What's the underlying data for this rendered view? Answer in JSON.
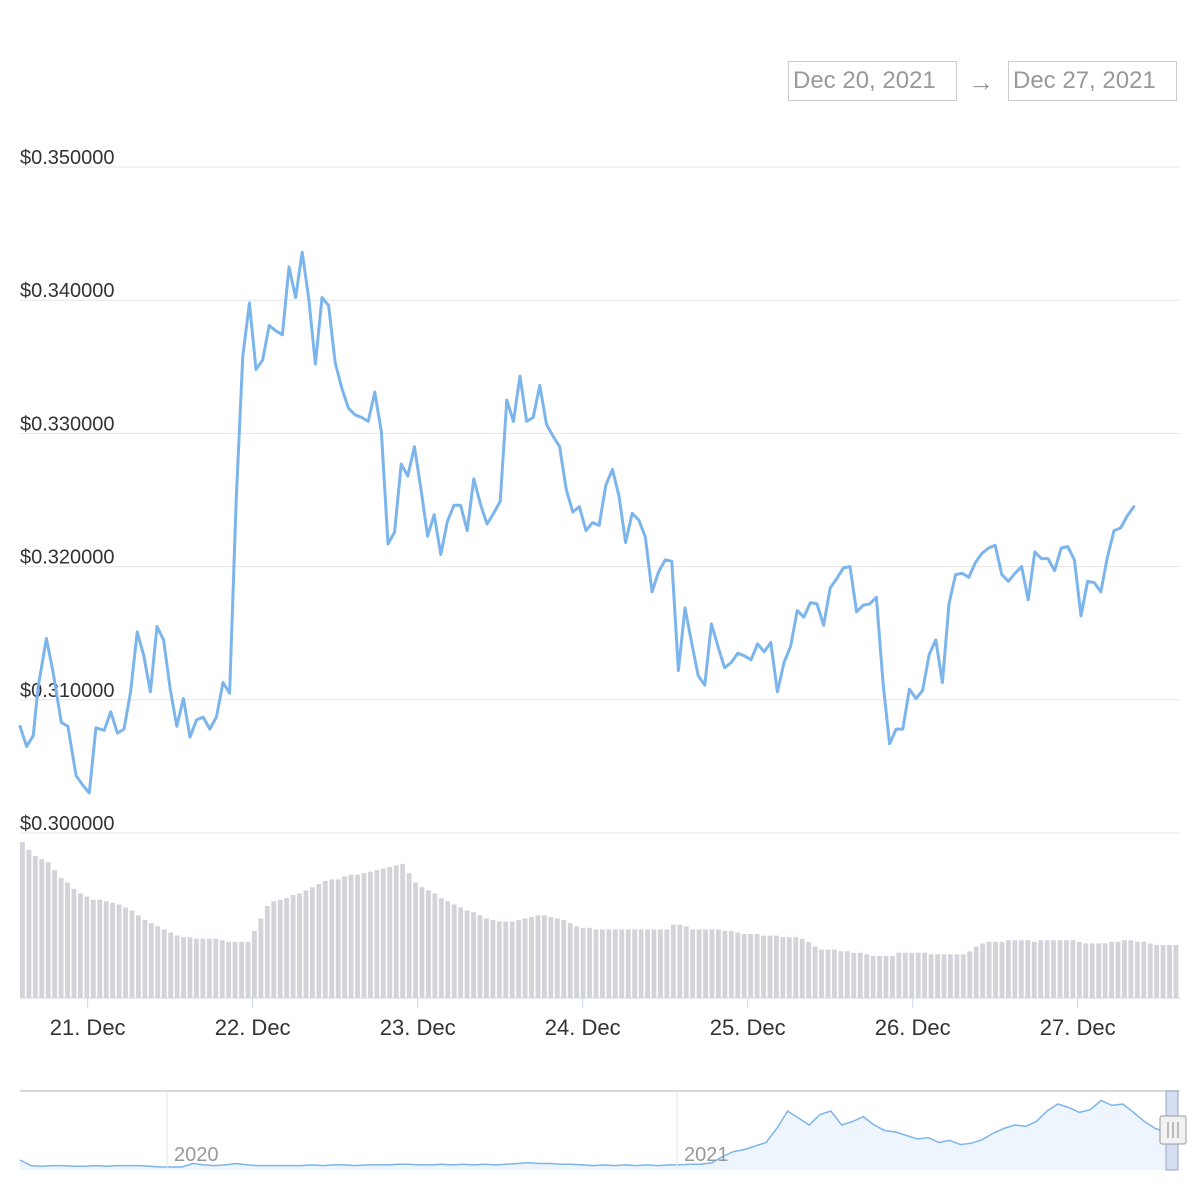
{
  "range_selector": {
    "from": "Dec 20, 2021",
    "arrow": "→",
    "to": "Dec 27, 2021"
  },
  "chart_data": {
    "type": "line",
    "title": "",
    "xlabel": "",
    "ylabel": "",
    "ylim": [
      0.3,
      0.35
    ],
    "y_tick_labels": [
      "$0.300000",
      "$0.310000",
      "$0.320000",
      "$0.330000",
      "$0.340000",
      "$0.350000"
    ],
    "y_tick_values": [
      0.3,
      0.31,
      0.32,
      0.33,
      0.34,
      0.35
    ],
    "x_tick_labels": [
      "21. Dec",
      "22. Dec",
      "23. Dec",
      "24. Dec",
      "25. Dec",
      "26. Dec",
      "27. Dec"
    ],
    "x_tick_values": [
      1,
      2,
      3,
      4,
      5,
      6,
      7
    ],
    "x_unit": "days since Dec 20, 2021 00:00",
    "xlim": [
      0.59,
      7.62
    ],
    "grid": true,
    "line_color": "#7cb5ec",
    "volume_color": "#d3d4da",
    "series": [
      {
        "name": "",
        "points": [
          [
            0.59,
            0.308
          ],
          [
            0.63,
            0.3065
          ],
          [
            0.67,
            0.3073
          ],
          [
            0.7,
            0.311
          ],
          [
            0.75,
            0.3146
          ],
          [
            0.79,
            0.3121
          ],
          [
            0.84,
            0.3083
          ],
          [
            0.88,
            0.308
          ],
          [
            0.93,
            0.3043
          ],
          [
            0.97,
            0.3036
          ],
          [
            1.01,
            0.303
          ],
          [
            1.05,
            0.3079
          ],
          [
            1.1,
            0.3077
          ],
          [
            1.14,
            0.3091
          ],
          [
            1.18,
            0.3075
          ],
          [
            1.22,
            0.3078
          ],
          [
            1.26,
            0.3106
          ],
          [
            1.3,
            0.3151
          ],
          [
            1.34,
            0.3133
          ],
          [
            1.38,
            0.3106
          ],
          [
            1.42,
            0.3155
          ],
          [
            1.46,
            0.3145
          ],
          [
            1.5,
            0.3108
          ],
          [
            1.54,
            0.308
          ],
          [
            1.58,
            0.3101
          ],
          [
            1.62,
            0.3072
          ],
          [
            1.66,
            0.3085
          ],
          [
            1.7,
            0.3087
          ],
          [
            1.74,
            0.3078
          ],
          [
            1.78,
            0.3087
          ],
          [
            1.82,
            0.3113
          ],
          [
            1.86,
            0.3105
          ],
          [
            1.9,
            0.325
          ],
          [
            1.94,
            0.3358
          ],
          [
            1.98,
            0.3398
          ],
          [
            2.02,
            0.3348
          ],
          [
            2.06,
            0.3355
          ],
          [
            2.1,
            0.3381
          ],
          [
            2.14,
            0.3377
          ],
          [
            2.18,
            0.3374
          ],
          [
            2.22,
            0.3425
          ],
          [
            2.26,
            0.3402
          ],
          [
            2.3,
            0.3436
          ],
          [
            2.34,
            0.3401
          ],
          [
            2.38,
            0.3352
          ],
          [
            2.42,
            0.3402
          ],
          [
            2.46,
            0.3396
          ],
          [
            2.5,
            0.3353
          ],
          [
            2.54,
            0.3334
          ],
          [
            2.58,
            0.3319
          ],
          [
            2.62,
            0.3314
          ],
          [
            2.66,
            0.3312
          ],
          [
            2.7,
            0.3309
          ],
          [
            2.74,
            0.3331
          ],
          [
            2.78,
            0.3301
          ],
          [
            2.82,
            0.3217
          ],
          [
            2.86,
            0.3226
          ],
          [
            2.9,
            0.3277
          ],
          [
            2.94,
            0.3268
          ],
          [
            2.98,
            0.329
          ],
          [
            3.02,
            0.3258
          ],
          [
            3.06,
            0.3223
          ],
          [
            3.1,
            0.3239
          ],
          [
            3.14,
            0.3209
          ],
          [
            3.18,
            0.3234
          ],
          [
            3.22,
            0.3246
          ],
          [
            3.26,
            0.3246
          ],
          [
            3.3,
            0.3227
          ],
          [
            3.34,
            0.3266
          ],
          [
            3.38,
            0.3247
          ],
          [
            3.42,
            0.3232
          ],
          [
            3.46,
            0.324
          ],
          [
            3.5,
            0.3249
          ],
          [
            3.54,
            0.3325
          ],
          [
            3.58,
            0.3309
          ],
          [
            3.62,
            0.3343
          ],
          [
            3.66,
            0.3309
          ],
          [
            3.7,
            0.3312
          ],
          [
            3.74,
            0.3336
          ],
          [
            3.78,
            0.3307
          ],
          [
            3.82,
            0.3298
          ],
          [
            3.86,
            0.329
          ],
          [
            3.9,
            0.3258
          ],
          [
            3.94,
            0.3241
          ],
          [
            3.98,
            0.3245
          ],
          [
            4.02,
            0.3227
          ],
          [
            4.06,
            0.3233
          ],
          [
            4.1,
            0.3231
          ],
          [
            4.14,
            0.3261
          ],
          [
            4.18,
            0.3273
          ],
          [
            4.22,
            0.3253
          ],
          [
            4.26,
            0.3218
          ],
          [
            4.3,
            0.324
          ],
          [
            4.34,
            0.3235
          ],
          [
            4.38,
            0.3222
          ],
          [
            4.42,
            0.3181
          ],
          [
            4.46,
            0.3196
          ],
          [
            4.5,
            0.3205
          ],
          [
            4.54,
            0.3204
          ],
          [
            4.58,
            0.3122
          ],
          [
            4.62,
            0.3169
          ],
          [
            4.66,
            0.3143
          ],
          [
            4.7,
            0.3118
          ],
          [
            4.74,
            0.3111
          ],
          [
            4.78,
            0.3157
          ],
          [
            4.82,
            0.314
          ],
          [
            4.86,
            0.3124
          ],
          [
            4.9,
            0.3128
          ],
          [
            4.94,
            0.3135
          ],
          [
            4.98,
            0.3133
          ],
          [
            5.02,
            0.313
          ],
          [
            5.06,
            0.3142
          ],
          [
            5.1,
            0.3136
          ],
          [
            5.14,
            0.3143
          ],
          [
            5.18,
            0.3106
          ],
          [
            5.22,
            0.3128
          ],
          [
            5.26,
            0.314
          ],
          [
            5.3,
            0.3167
          ],
          [
            5.34,
            0.3162
          ],
          [
            5.38,
            0.3173
          ],
          [
            5.42,
            0.3172
          ],
          [
            5.46,
            0.3156
          ],
          [
            5.5,
            0.3184
          ],
          [
            5.54,
            0.3191
          ],
          [
            5.58,
            0.3199
          ],
          [
            5.62,
            0.32
          ],
          [
            5.66,
            0.3166
          ],
          [
            5.7,
            0.3171
          ],
          [
            5.74,
            0.3172
          ],
          [
            5.78,
            0.3177
          ],
          [
            5.82,
            0.3113
          ],
          [
            5.86,
            0.3067
          ],
          [
            5.9,
            0.3078
          ],
          [
            5.94,
            0.3078
          ],
          [
            5.98,
            0.3108
          ],
          [
            6.02,
            0.3101
          ],
          [
            6.06,
            0.3107
          ],
          [
            6.1,
            0.3134
          ],
          [
            6.14,
            0.3145
          ],
          [
            6.18,
            0.3113
          ],
          [
            6.22,
            0.3172
          ],
          [
            6.26,
            0.3194
          ],
          [
            6.3,
            0.3195
          ],
          [
            6.34,
            0.3192
          ],
          [
            6.38,
            0.3203
          ],
          [
            6.42,
            0.321
          ],
          [
            6.46,
            0.3214
          ],
          [
            6.5,
            0.3216
          ],
          [
            6.54,
            0.3194
          ],
          [
            6.58,
            0.3189
          ],
          [
            6.62,
            0.3195
          ],
          [
            6.66,
            0.32
          ],
          [
            6.7,
            0.3175
          ],
          [
            6.74,
            0.3211
          ],
          [
            6.78,
            0.3206
          ],
          [
            6.82,
            0.3206
          ],
          [
            6.86,
            0.3197
          ],
          [
            6.9,
            0.3214
          ],
          [
            6.94,
            0.3215
          ],
          [
            6.98,
            0.3205
          ],
          [
            7.02,
            0.3163
          ],
          [
            7.06,
            0.3189
          ],
          [
            7.1,
            0.3188
          ],
          [
            7.14,
            0.3181
          ],
          [
            7.18,
            0.3207
          ],
          [
            7.22,
            0.3227
          ],
          [
            7.26,
            0.3229
          ],
          [
            7.3,
            0.3238
          ],
          [
            7.34,
            0.3245
          ]
        ]
      }
    ],
    "volume": {
      "max_label": "",
      "relative": [
        1.0,
        0.95,
        0.91,
        0.89,
        0.87,
        0.82,
        0.77,
        0.74,
        0.7,
        0.67,
        0.65,
        0.63,
        0.63,
        0.62,
        0.61,
        0.6,
        0.58,
        0.56,
        0.53,
        0.5,
        0.48,
        0.46,
        0.44,
        0.42,
        0.4,
        0.39,
        0.39,
        0.38,
        0.38,
        0.38,
        0.38,
        0.37,
        0.36,
        0.36,
        0.36,
        0.36,
        0.43,
        0.51,
        0.59,
        0.62,
        0.63,
        0.64,
        0.66,
        0.67,
        0.69,
        0.71,
        0.73,
        0.75,
        0.76,
        0.76,
        0.78,
        0.79,
        0.79,
        0.8,
        0.81,
        0.82,
        0.83,
        0.84,
        0.85,
        0.86,
        0.8,
        0.74,
        0.71,
        0.69,
        0.67,
        0.64,
        0.62,
        0.6,
        0.58,
        0.56,
        0.55,
        0.53,
        0.51,
        0.5,
        0.49,
        0.49,
        0.49,
        0.5,
        0.51,
        0.52,
        0.53,
        0.53,
        0.52,
        0.51,
        0.5,
        0.48,
        0.46,
        0.45,
        0.45,
        0.44,
        0.44,
        0.44,
        0.44,
        0.44,
        0.44,
        0.44,
        0.44,
        0.44,
        0.44,
        0.44,
        0.44,
        0.47,
        0.47,
        0.46,
        0.44,
        0.44,
        0.44,
        0.44,
        0.44,
        0.43,
        0.43,
        0.42,
        0.41,
        0.41,
        0.41,
        0.4,
        0.4,
        0.4,
        0.39,
        0.39,
        0.39,
        0.38,
        0.36,
        0.33,
        0.31,
        0.31,
        0.31,
        0.3,
        0.3,
        0.29,
        0.29,
        0.28,
        0.27,
        0.27,
        0.27,
        0.27,
        0.29,
        0.29,
        0.29,
        0.29,
        0.29,
        0.28,
        0.28,
        0.28,
        0.28,
        0.28,
        0.28,
        0.3,
        0.33,
        0.35,
        0.36,
        0.36,
        0.36,
        0.37,
        0.37,
        0.37,
        0.37,
        0.36,
        0.37,
        0.37,
        0.37,
        0.37,
        0.37,
        0.37,
        0.36,
        0.35,
        0.35,
        0.35,
        0.35,
        0.36,
        0.36,
        0.37,
        0.37,
        0.36,
        0.36,
        0.35,
        0.34,
        0.34,
        0.34,
        0.34
      ]
    },
    "navigator": {
      "labels": [
        "2020",
        "2021"
      ],
      "relative": [
        0.1,
        0.02,
        0.01,
        0.02,
        0.02,
        0.01,
        0.01,
        0.02,
        0.01,
        0.02,
        0.02,
        0.02,
        0.01,
        0.0,
        0.0,
        0.0,
        0.05,
        0.03,
        0.02,
        0.03,
        0.05,
        0.03,
        0.02,
        0.02,
        0.02,
        0.02,
        0.02,
        0.03,
        0.02,
        0.03,
        0.03,
        0.02,
        0.03,
        0.03,
        0.03,
        0.04,
        0.04,
        0.03,
        0.03,
        0.04,
        0.03,
        0.04,
        0.03,
        0.04,
        0.03,
        0.04,
        0.05,
        0.06,
        0.05,
        0.05,
        0.04,
        0.04,
        0.03,
        0.02,
        0.03,
        0.02,
        0.03,
        0.02,
        0.03,
        0.02,
        0.03,
        0.03,
        0.04,
        0.04,
        0.06,
        0.15,
        0.22,
        0.25,
        0.3,
        0.35,
        0.55,
        0.8,
        0.7,
        0.6,
        0.75,
        0.8,
        0.6,
        0.65,
        0.72,
        0.6,
        0.52,
        0.5,
        0.45,
        0.4,
        0.42,
        0.35,
        0.38,
        0.32,
        0.34,
        0.39,
        0.48,
        0.55,
        0.6,
        0.58,
        0.65,
        0.8,
        0.9,
        0.85,
        0.78,
        0.82,
        0.95,
        0.88,
        0.9,
        0.78,
        0.65,
        0.55,
        0.5
      ]
    }
  }
}
